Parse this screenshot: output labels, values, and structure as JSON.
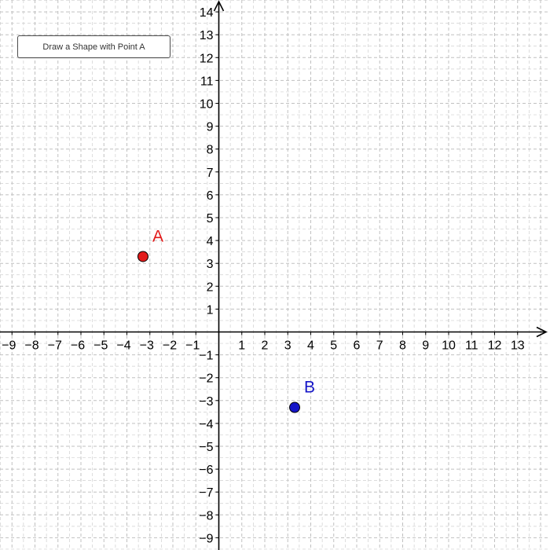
{
  "toolbar": {
    "button_label": "Draw a Shape with Point A"
  },
  "graph": {
    "x_range": [
      -9,
      13
    ],
    "y_range": [
      -9,
      14
    ],
    "x_ticks": [
      -9,
      -8,
      -7,
      -6,
      -5,
      -4,
      -3,
      -2,
      -1,
      1,
      2,
      3,
      4,
      5,
      6,
      7,
      8,
      9,
      10,
      11,
      12,
      13
    ],
    "y_ticks": [
      -9,
      -8,
      -7,
      -6,
      -5,
      -4,
      -3,
      -2,
      -1,
      1,
      2,
      3,
      4,
      5,
      6,
      7,
      8,
      9,
      10,
      11,
      12,
      13,
      14
    ],
    "minus_sign": "−",
    "grid": "dashed",
    "colors": {
      "axis": "#000000",
      "grid": "#c0c0c0",
      "tick_label": "#000000",
      "point_a": "#e21b1b",
      "point_b": "#1515c8",
      "point_outline": "#000000"
    },
    "points": [
      {
        "label": "A",
        "x": -3.3,
        "y": 3.3,
        "color": "#e21b1b"
      },
      {
        "label": "B",
        "x": 3.3,
        "y": -3.3,
        "color": "#1515c8"
      }
    ]
  }
}
